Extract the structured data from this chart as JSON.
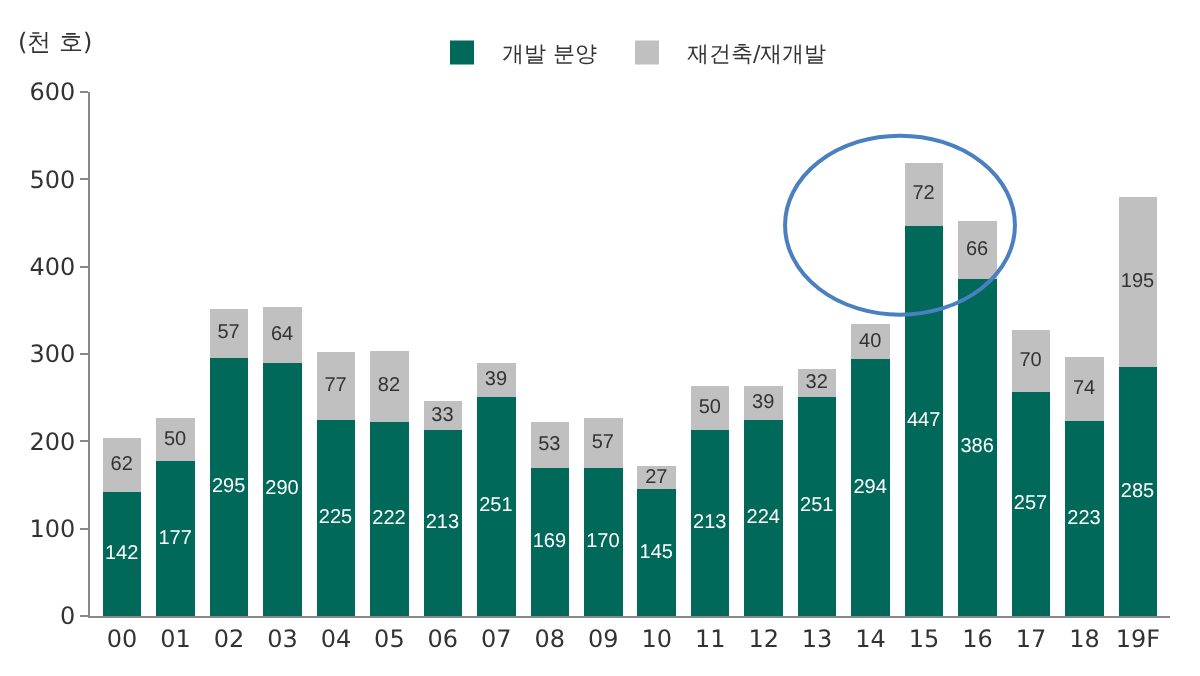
{
  "chart_data": {
    "type": "bar",
    "stacked": true,
    "ylabel": "(천 호)",
    "categories": [
      "00",
      "01",
      "02",
      "03",
      "04",
      "05",
      "06",
      "07",
      "08",
      "09",
      "10",
      "11",
      "12",
      "13",
      "14",
      "15",
      "16",
      "17",
      "18",
      "19F"
    ],
    "series": [
      {
        "name": "개발 분양",
        "color": "#00695a",
        "values": [
          142,
          177,
          295,
          290,
          225,
          222,
          213,
          251,
          169,
          170,
          145,
          213,
          224,
          251,
          294,
          447,
          386,
          257,
          223,
          285
        ]
      },
      {
        "name": "재건축/재개발",
        "color": "#c0c0c0",
        "values": [
          62,
          50,
          57,
          64,
          77,
          82,
          33,
          39,
          53,
          57,
          27,
          50,
          39,
          32,
          40,
          72,
          66,
          70,
          74,
          195
        ]
      }
    ],
    "ylim": [
      0,
      600
    ],
    "yticks": [
      0,
      100,
      200,
      300,
      400,
      500,
      600
    ],
    "grid": false,
    "legend": "top",
    "data_labels": true
  }
}
